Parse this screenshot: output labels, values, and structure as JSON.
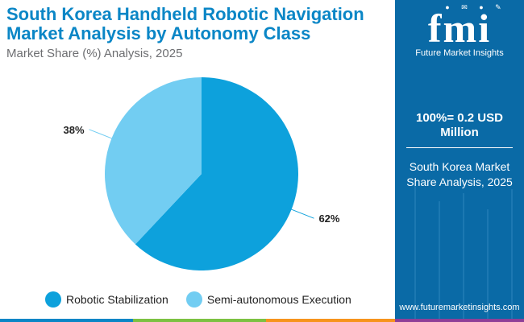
{
  "title": "South Korea Handheld Robotic Navigation Market Analysis by Autonomy Class",
  "subtitle": "Market Share (%) Analysis, 2025",
  "chart_data": {
    "type": "pie",
    "title": "South Korea Handheld Robotic Navigation Market Analysis by Autonomy Class",
    "subtitle": "Market Share (%) Analysis, 2025",
    "categories": [
      "Robotic Stabilization",
      "Semi-autonomous Execution"
    ],
    "values": [
      62,
      38
    ],
    "labels": [
      "62%",
      "38%"
    ],
    "colors": [
      "#0da1dc",
      "#72cdf2"
    ],
    "legend_position": "bottom"
  },
  "legend": [
    {
      "label": "Robotic Stabilization",
      "color": "#0da1dc"
    },
    {
      "label": "Semi-autonomous Execution",
      "color": "#72cdf2"
    }
  ],
  "sidebar": {
    "logo_mark": "fmi",
    "logo_text": "Future Market Insights",
    "total_line1": "100%= 0.2 USD",
    "total_line2": "Million",
    "caption_line1": "South Korea Market",
    "caption_line2": "Share Analysis, 2025",
    "url": "www.futuremarketinsights.com"
  },
  "colors": {
    "title": "#0a86c6",
    "panel": "#0a6aa6",
    "bar": [
      "#0a86c6",
      "#7cc142",
      "#f7941d",
      "#8e3f97"
    ]
  }
}
